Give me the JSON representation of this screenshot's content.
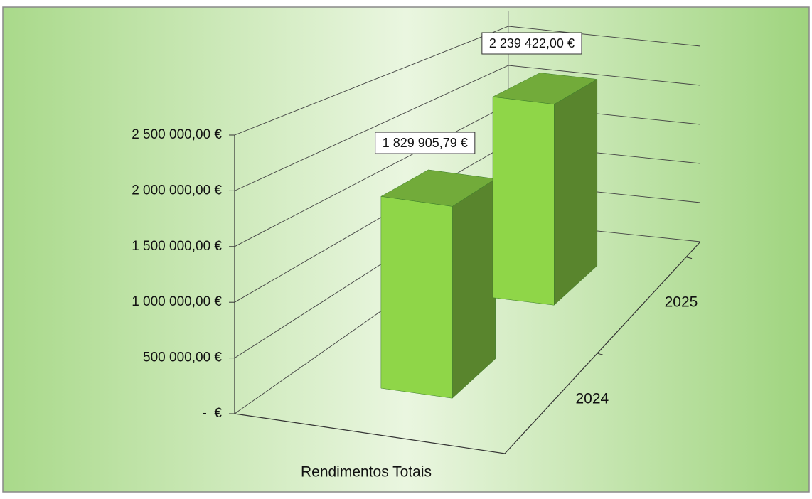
{
  "chart_data": {
    "type": "bar3d",
    "categories": [
      "Rendimentos Totais"
    ],
    "series": [
      {
        "name": "2025",
        "color": "#8fd648",
        "values": [
          2239422.0
        ],
        "value_labels": [
          "2 239 422,00 €"
        ]
      },
      {
        "name": "2024",
        "color": "#8fd648",
        "values": [
          1829905.79
        ],
        "value_labels": [
          "1 829 905,79 €"
        ]
      }
    ],
    "ylim": [
      0,
      2500000
    ],
    "yticks": [
      {
        "value": 0,
        "label": "-  €"
      },
      {
        "value": 500000,
        "label": "500 000,00 €"
      },
      {
        "value": 1000000,
        "label": "1 000 000,00 €"
      },
      {
        "value": 1500000,
        "label": "1 500 000,00 €"
      },
      {
        "value": 2000000,
        "label": "2 000 000,00 €"
      },
      {
        "value": 2500000,
        "label": "2 500 000,00 €"
      }
    ],
    "grid": true
  }
}
